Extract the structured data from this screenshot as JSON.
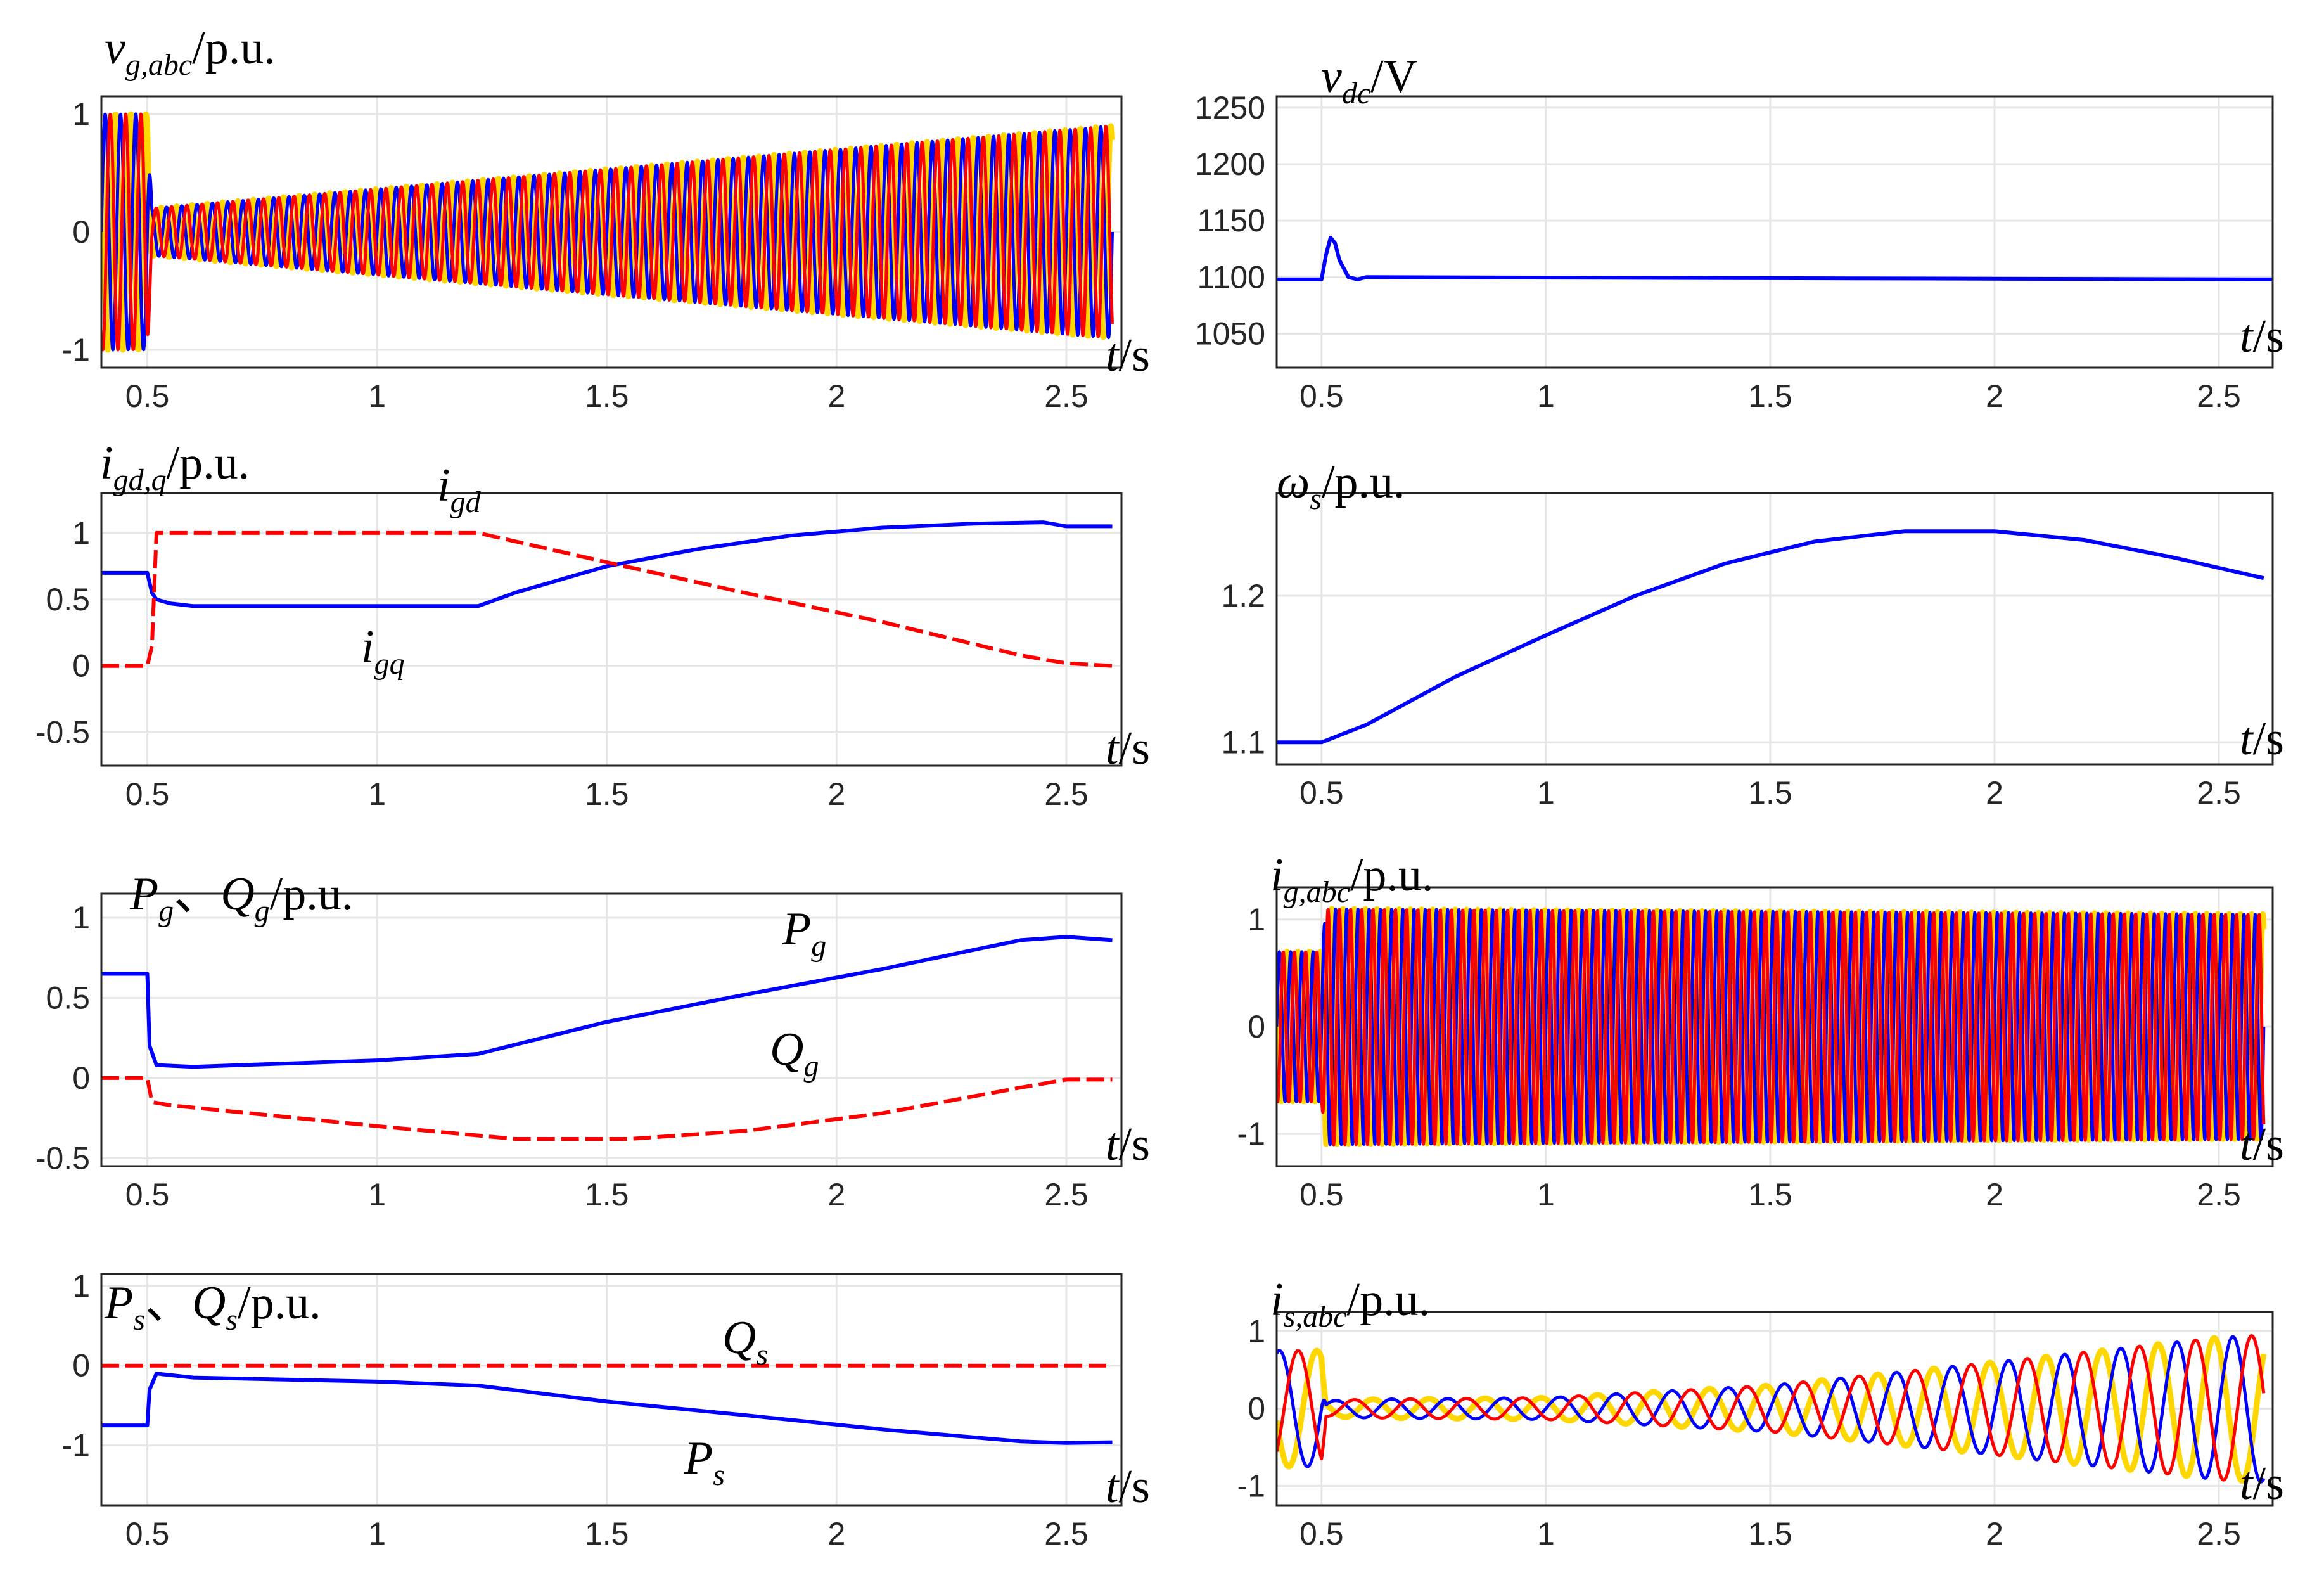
{
  "colors": {
    "blue": "#0000ff",
    "red": "#ff0000",
    "yellow": "#ffd700",
    "grid": "#e6e6e6",
    "axis": "#262626"
  },
  "chart_data": [
    {
      "id": "vg",
      "type": "line",
      "signal": "three_phase",
      "ylabel": {
        "main": "v",
        "sub": "g,abc",
        "unit": "/p.u."
      },
      "xunit": "/s",
      "xlim": [
        0.4,
        2.62
      ],
      "ylim": [
        -1.15,
        1.15
      ],
      "xticks": [
        "0.5",
        "1",
        "1.5",
        "2",
        "2.5"
      ],
      "yticks": [
        1,
        0,
        -1
      ],
      "ytick_labels": [
        "1",
        "0",
        "-1"
      ],
      "freq_hz": 30,
      "amplitude_envelope": {
        "t": [
          0.4,
          0.5,
          0.51,
          2.6
        ],
        "a": [
          1.0,
          1.0,
          0.2,
          0.9
        ]
      },
      "annotations": []
    },
    {
      "id": "vdc",
      "type": "line",
      "ylabel": {
        "main": "v",
        "sub": "dc",
        "unit": "/V"
      },
      "xunit": "/s",
      "xlim": [
        0.4,
        2.62
      ],
      "ylim": [
        1020,
        1260
      ],
      "xticks": [
        "0.5",
        "1",
        "1.5",
        "2",
        "2.5"
      ],
      "yticks": [
        1250,
        1200,
        1150,
        1100,
        1050
      ],
      "ytick_labels": [
        "1250",
        "1200",
        "1150",
        "1100",
        "1050"
      ],
      "series": [
        {
          "name": "v_dc",
          "color": "blue",
          "x": [
            0.4,
            0.5,
            0.51,
            0.52,
            0.53,
            0.54,
            0.56,
            0.58,
            0.6,
            2.62
          ],
          "y": [
            1098,
            1098,
            1120,
            1135,
            1130,
            1115,
            1100,
            1098,
            1100,
            1098
          ]
        }
      ],
      "annotations": []
    },
    {
      "id": "igdq",
      "type": "line",
      "ylabel": {
        "main": "i",
        "sub": "gd,q",
        "unit": "/p.u."
      },
      "xunit": "/s",
      "xlim": [
        0.4,
        2.62
      ],
      "ylim": [
        -0.75,
        1.3
      ],
      "xticks": [
        "0.5",
        "1",
        "1.5",
        "2",
        "2.5"
      ],
      "yticks": [
        1,
        0.5,
        0,
        -0.5
      ],
      "ytick_labels": [
        "1",
        "0.5",
        "0",
        "-0.5"
      ],
      "series": [
        {
          "name": "i_gq",
          "color": "blue",
          "x": [
            0.4,
            0.5,
            0.51,
            0.52,
            0.55,
            0.6,
            1.22,
            1.3,
            1.5,
            1.7,
            1.9,
            2.1,
            2.3,
            2.45,
            2.5,
            2.6
          ],
          "y": [
            0.7,
            0.7,
            0.55,
            0.5,
            0.47,
            0.45,
            0.45,
            0.55,
            0.75,
            0.88,
            0.98,
            1.04,
            1.07,
            1.08,
            1.05,
            1.05
          ]
        },
        {
          "name": "i_gd",
          "color": "red",
          "dash": true,
          "x": [
            0.4,
            0.5,
            0.51,
            0.52,
            0.55,
            1.22,
            1.5,
            1.8,
            2.1,
            2.4,
            2.5,
            2.6
          ],
          "y": [
            0.0,
            0.0,
            0.15,
            1.0,
            1.0,
            1.0,
            0.78,
            0.55,
            0.33,
            0.08,
            0.02,
            0.0
          ]
        }
      ],
      "annotations": [
        {
          "main": "i",
          "sub": "gd"
        },
        {
          "main": "i",
          "sub": "gq"
        }
      ]
    },
    {
      "id": "omega",
      "type": "line",
      "ylabel": {
        "main": "ω",
        "sub": "s",
        "unit": "/p.u."
      },
      "xunit": "/s",
      "xlim": [
        0.4,
        2.62
      ],
      "ylim": [
        1.085,
        1.27
      ],
      "xticks": [
        "0.5",
        "1",
        "1.5",
        "2",
        "2.5"
      ],
      "yticks": [
        1.2,
        1.1
      ],
      "ytick_labels": [
        "1.2",
        "1.1"
      ],
      "series": [
        {
          "name": "ω_s",
          "color": "blue",
          "x": [
            0.4,
            0.5,
            0.6,
            0.8,
            1.0,
            1.2,
            1.4,
            1.6,
            1.8,
            2.0,
            2.2,
            2.4,
            2.6
          ],
          "y": [
            1.1,
            1.1,
            1.112,
            1.145,
            1.173,
            1.2,
            1.222,
            1.237,
            1.244,
            1.244,
            1.238,
            1.226,
            1.212
          ]
        }
      ],
      "annotations": []
    },
    {
      "id": "pgqg",
      "type": "line",
      "ylabel": {
        "main": "P",
        "sub": "g",
        "sep": "、",
        "main2": "Q",
        "sub2": "g",
        "unit": "/p.u."
      },
      "xunit": "/s",
      "xlim": [
        0.4,
        2.62
      ],
      "ylim": [
        -0.55,
        1.15
      ],
      "xticks": [
        "0.5",
        "1",
        "1.5",
        "2",
        "2.5"
      ],
      "yticks": [
        1,
        0.5,
        0,
        -0.5
      ],
      "ytick_labels": [
        "1",
        "0.5",
        "0",
        "-0.5"
      ],
      "series": [
        {
          "name": "P_g",
          "color": "blue",
          "x": [
            0.4,
            0.5,
            0.505,
            0.52,
            0.6,
            1.0,
            1.22,
            1.5,
            1.8,
            2.1,
            2.4,
            2.5,
            2.6
          ],
          "y": [
            0.65,
            0.65,
            0.2,
            0.08,
            0.07,
            0.11,
            0.15,
            0.35,
            0.52,
            0.68,
            0.86,
            0.88,
            0.86
          ]
        },
        {
          "name": "Q_g",
          "color": "red",
          "dash": true,
          "x": [
            0.4,
            0.5,
            0.51,
            0.55,
            1.0,
            1.3,
            1.55,
            1.8,
            2.1,
            2.4,
            2.5,
            2.6
          ],
          "y": [
            0.0,
            0.0,
            -0.15,
            -0.17,
            -0.3,
            -0.38,
            -0.38,
            -0.33,
            -0.22,
            -0.06,
            -0.01,
            -0.01
          ]
        }
      ],
      "annotations": [
        {
          "main": "P",
          "sub": "g"
        },
        {
          "main": "Q",
          "sub": "g"
        }
      ]
    },
    {
      "id": "igabc",
      "type": "line",
      "signal": "three_phase",
      "ylabel": {
        "main": "i",
        "sub": "g,abc",
        "unit": "/p.u."
      },
      "xunit": "/s",
      "xlim": [
        0.4,
        2.62
      ],
      "ylim": [
        -1.3,
        1.3
      ],
      "xticks": [
        "0.5",
        "1",
        "1.5",
        "2",
        "2.5"
      ],
      "yticks": [
        1,
        0,
        -1
      ],
      "ytick_labels": [
        "1",
        "0",
        "-1"
      ],
      "freq_hz": 40,
      "amplitude_envelope": {
        "t": [
          0.4,
          0.5,
          0.51,
          2.6
        ],
        "a": [
          0.7,
          0.7,
          1.1,
          1.05
        ]
      },
      "annotations": []
    },
    {
      "id": "psqs",
      "type": "line",
      "ylabel": {
        "main": "P",
        "sub": "s",
        "sep": "、",
        "main2": "Q",
        "sub2": "s",
        "unit": "/p.u."
      },
      "xunit": "/s",
      "xlim": [
        0.4,
        2.62
      ],
      "ylim": [
        -1.75,
        1.15
      ],
      "xticks": [
        "0.5",
        "1",
        "1.5",
        "2",
        "2.5"
      ],
      "yticks": [
        1,
        0,
        -1
      ],
      "ytick_labels": [
        "1",
        "0",
        "-1"
      ],
      "series": [
        {
          "name": "P_s",
          "color": "blue",
          "x": [
            0.4,
            0.5,
            0.505,
            0.52,
            0.6,
            1.0,
            1.22,
            1.5,
            1.8,
            2.1,
            2.4,
            2.5,
            2.6
          ],
          "y": [
            -0.75,
            -0.75,
            -0.3,
            -0.1,
            -0.15,
            -0.2,
            -0.25,
            -0.45,
            -0.62,
            -0.8,
            -0.95,
            -0.97,
            -0.96
          ]
        },
        {
          "name": "Q_s",
          "color": "red",
          "dash": true,
          "x": [
            0.4,
            0.5,
            0.51,
            2.6
          ],
          "y": [
            0.0,
            0.0,
            0.0,
            0.0
          ]
        }
      ],
      "annotations": [
        {
          "main": "Q",
          "sub": "s"
        },
        {
          "main": "P",
          "sub": "s"
        }
      ]
    },
    {
      "id": "isabc",
      "type": "line",
      "signal": "three_phase",
      "ylabel": {
        "main": "i",
        "sub": "s,abc",
        "unit": "/p.u."
      },
      "xunit": "/s",
      "xlim": [
        0.4,
        2.62
      ],
      "ylim": [
        -1.25,
        1.25
      ],
      "xticks": [
        "0.5",
        "1",
        "1.5",
        "2",
        "2.5"
      ],
      "yticks": [
        1,
        0,
        -1
      ],
      "ytick_labels": [
        "1",
        "0",
        "-1"
      ],
      "freq_hz": 8,
      "amplitude_envelope": {
        "t": [
          0.4,
          0.5,
          0.51,
          0.6,
          1.0,
          1.5,
          2.0,
          2.5,
          2.6
        ],
        "a": [
          0.75,
          0.75,
          0.1,
          0.12,
          0.14,
          0.3,
          0.6,
          0.92,
          0.95
        ]
      },
      "annotations": []
    }
  ]
}
